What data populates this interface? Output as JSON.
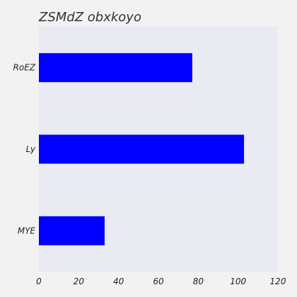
{
  "chart_data": {
    "type": "bar",
    "orientation": "horizontal",
    "title": "ZSMdZ  obxkoyo",
    "xlabel": "",
    "ylabel": "",
    "categories": [
      "RoEZ",
      "Ly",
      "MYE"
    ],
    "values": [
      77,
      103,
      33
    ],
    "xlim": [
      0,
      120
    ],
    "xticks": [
      0,
      20,
      40,
      60,
      80,
      100,
      120
    ],
    "grid": false,
    "legend": "none",
    "bar_color": "#0000ff",
    "plot_background": "#eaeaf2",
    "page_background": "#f2f2f2"
  }
}
